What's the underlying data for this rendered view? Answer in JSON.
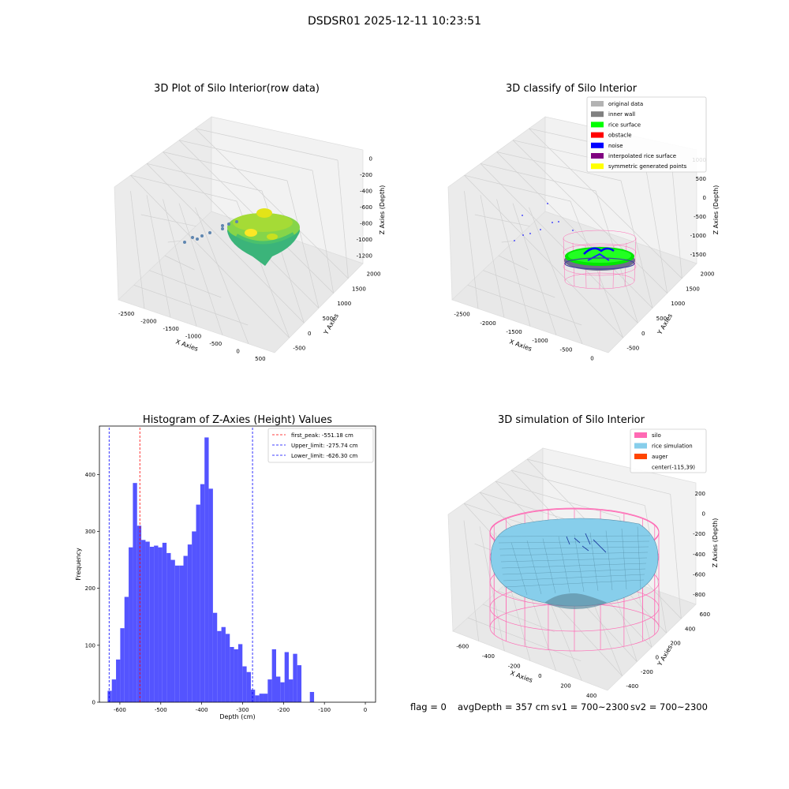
{
  "suptitle": "DSDSR01 2025-12-11 10:23:51",
  "panel1": {
    "title": "3D Plot of Silo Interior(row data)",
    "xlabel": "X Axies",
    "ylabel": "Y Axies",
    "zlabel": "Z Axies (Depth)",
    "xticks": [
      "-2500",
      "-2000",
      "-1500",
      "-1000",
      "-500",
      "0",
      "500"
    ],
    "yticks": [
      "-500",
      "0",
      "500",
      "1000",
      "1500",
      "2000"
    ],
    "zticks": [
      "0",
      "-200",
      "-400",
      "-600",
      "-800",
      "-1000",
      "-1200"
    ]
  },
  "panel2": {
    "title": "3D classify of Silo Interior",
    "xlabel": "X Axies",
    "ylabel": "Y Axies",
    "zlabel": "Z Axies (Depth)",
    "xticks": [
      "-2500",
      "-2000",
      "-1500",
      "-1000",
      "-500",
      "0"
    ],
    "yticks": [
      "-500",
      "0",
      "500",
      "1000",
      "1500",
      "2000"
    ],
    "zticks": [
      "1000",
      "500",
      "0",
      "-500",
      "-1000",
      "-1500"
    ],
    "legend": [
      {
        "label": "original data",
        "color": "#b3b3b3"
      },
      {
        "label": "inner wall",
        "color": "#808080"
      },
      {
        "label": "rice surface",
        "color": "#00ff00"
      },
      {
        "label": "obstacle",
        "color": "#ff0000"
      },
      {
        "label": "noise",
        "color": "#0000ff"
      },
      {
        "label": "interpolated rice surface",
        "color": "#800080"
      },
      {
        "label": "symmetric generated points",
        "color": "#ffff00"
      }
    ]
  },
  "panel4": {
    "title": "3D simulation of Silo Interior",
    "xlabel": "X Axies",
    "ylabel": "Y Axies",
    "zlabel": "Z Axies (Depth)",
    "xticks": [
      "-600",
      "-400",
      "-200",
      "0",
      "200",
      "400"
    ],
    "yticks": [
      "-400",
      "-200",
      "0",
      "200",
      "400",
      "600"
    ],
    "zticks": [
      "200",
      "0",
      "-200",
      "-400",
      "-600",
      "-800"
    ],
    "legend": [
      {
        "label": "silo",
        "color": "#ff69b4"
      },
      {
        "label": "rice simulation",
        "color": "#87ceeb"
      },
      {
        "label": "auger",
        "color": "#ff4500"
      },
      {
        "label": "center(-115,39)",
        "color": ""
      }
    ]
  },
  "status": {
    "flag": "flag = 0",
    "avg": "avgDepth = 357 cm",
    "sv1": "sv1 = 700~2300",
    "sv2": "sv2 = 700~2300"
  },
  "chart_data": [
    {
      "type": "scatter",
      "title": "3D Plot of Silo Interior(row data)",
      "xlabel": "X Axies",
      "ylabel": "Y Axies",
      "zlabel": "Z Axies (Depth)",
      "xlim": [
        -2700,
        500
      ],
      "ylim": [
        -600,
        2100
      ],
      "zlim": [
        -1250,
        50
      ],
      "colormap": "viridis-green-yellow"
    },
    {
      "type": "scatter",
      "title": "3D classify of Silo Interior",
      "xlabel": "X Axies",
      "ylabel": "Y Axies",
      "zlabel": "Z Axies (Depth)",
      "xlim": [
        -2700,
        300
      ],
      "ylim": [
        -600,
        2100
      ],
      "zlim": [
        -1800,
        1200
      ],
      "legend_position": "top-right"
    },
    {
      "type": "bar",
      "title": "Histogram of Z-Axies (Height) Values",
      "xlabel": "Depth (cm)",
      "ylabel": "Frequency",
      "xlim": [
        -650,
        25
      ],
      "ylim": [
        0,
        485
      ],
      "xticks": [
        -600,
        -500,
        -400,
        -300,
        -200,
        -100,
        0
      ],
      "yticks": [
        0,
        100,
        200,
        300,
        400
      ],
      "bar_color": "#4b4bff",
      "bin_width": 10.3,
      "bin_start": -630,
      "values": [
        20,
        40,
        75,
        130,
        185,
        272,
        385,
        310,
        285,
        282,
        273,
        275,
        272,
        280,
        262,
        250,
        240,
        240,
        257,
        277,
        300,
        347,
        383,
        465,
        375,
        157,
        125,
        132,
        120,
        97,
        93,
        102,
        63,
        53,
        22,
        12,
        15,
        15,
        40,
        93,
        45,
        35,
        88,
        40,
        85,
        65,
        0,
        0,
        18
      ],
      "lines": [
        {
          "name": "first_peak: -551.18 cm",
          "x": -551.18,
          "color": "#ff0000"
        },
        {
          "name": "Upper_limit: -275.74 cm",
          "x": -275.74,
          "color": "#0000ff"
        },
        {
          "name": "Lower_limit: -626.30 cm",
          "x": -626.3,
          "color": "#0000ff"
        }
      ],
      "legend_position": "top-right"
    },
    {
      "type": "scatter",
      "title": "3D simulation of Silo Interior",
      "xlabel": "X Axies",
      "ylabel": "Y Axies",
      "zlabel": "Z Axies (Depth)",
      "xlim": [
        -700,
        450
      ],
      "ylim": [
        -450,
        650
      ],
      "zlim": [
        -850,
        250
      ],
      "center": [
        -115,
        39
      ],
      "legend_position": "top-right"
    }
  ]
}
